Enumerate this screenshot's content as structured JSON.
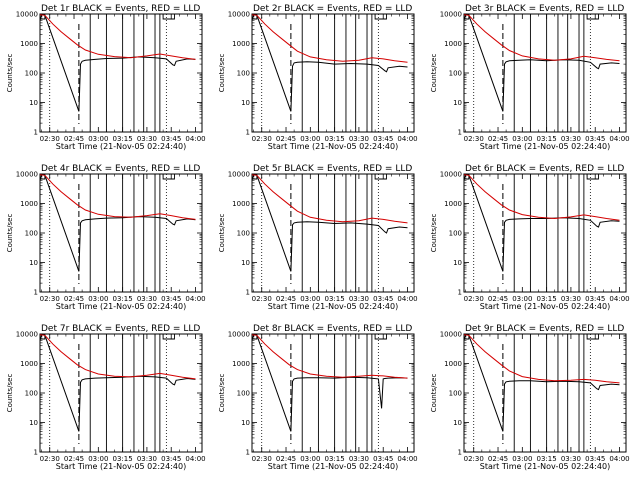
{
  "chart_data": [
    {
      "type": "line",
      "title": "Det 1r BLACK = Events, RED = LLD",
      "xlabel": "Start Time (21-Nov-05 02:24:40)",
      "ylabel": "Counts/sec",
      "xticks": [
        "02:30",
        "02:45",
        "03:00",
        "03:15",
        "03:30",
        "03:45",
        "04:00"
      ],
      "yticks": [
        "1",
        "10",
        "100",
        "1000",
        "10000"
      ],
      "ylim": [
        1,
        10000
      ],
      "yscale": "log",
      "series": [
        {
          "name": "BLACK = Events",
          "color": "#000000",
          "x": [
            "02:24",
            "02:25",
            "02:26",
            "02:27",
            "02:48",
            "02:49",
            "02:50",
            "02:52",
            "02:58",
            "03:05",
            "03:15",
            "03:25",
            "03:35",
            "03:42",
            "03:46",
            "03:47",
            "03:48",
            "03:55",
            "04:00"
          ],
          "y": [
            6000,
            9000,
            9500,
            9000,
            5,
            200,
            250,
            270,
            290,
            310,
            320,
            350,
            330,
            300,
            190,
            180,
            250,
            300,
            290
          ]
        },
        {
          "name": "RED = LLD",
          "color": "#d40000",
          "x": [
            "02:24",
            "02:27",
            "02:32",
            "02:37",
            "02:42",
            "02:47",
            "02:52",
            "03:00",
            "03:10",
            "03:20",
            "03:30",
            "03:38",
            "03:45",
            "03:52",
            "04:00"
          ],
          "y": [
            9500,
            9000,
            4500,
            2500,
            1500,
            900,
            600,
            430,
            360,
            330,
            380,
            440,
            380,
            330,
            290
          ]
        }
      ]
    },
    {
      "type": "line",
      "title": "Det 2r BLACK = Events, RED = LLD",
      "xlabel": "Start Time (21-Nov-05 02:24:40)",
      "ylabel": "Counts/sec",
      "xticks": [
        "02:30",
        "02:45",
        "03:00",
        "03:15",
        "03:30",
        "03:45",
        "04:00"
      ],
      "yticks": [
        "1",
        "10",
        "100",
        "1000",
        "10000"
      ],
      "ylim": [
        1,
        10000
      ],
      "yscale": "log",
      "series": [
        {
          "name": "BLACK = Events",
          "color": "#000000",
          "x": [
            "02:24",
            "02:25",
            "02:26",
            "02:27",
            "02:48",
            "02:49",
            "02:50",
            "02:52",
            "02:58",
            "03:05",
            "03:15",
            "03:25",
            "03:35",
            "03:42",
            "03:46",
            "03:47",
            "03:48",
            "03:55",
            "04:00"
          ],
          "y": [
            6000,
            9000,
            9500,
            9000,
            5,
            170,
            220,
            230,
            240,
            230,
            200,
            210,
            200,
            180,
            120,
            110,
            150,
            170,
            160
          ]
        },
        {
          "name": "RED = LLD",
          "color": "#d40000",
          "x": [
            "02:24",
            "02:27",
            "02:32",
            "02:37",
            "02:42",
            "02:47",
            "02:52",
            "03:00",
            "03:10",
            "03:20",
            "03:30",
            "03:38",
            "03:45",
            "03:52",
            "04:00"
          ],
          "y": [
            9500,
            9000,
            4500,
            2500,
            1500,
            900,
            550,
            350,
            280,
            250,
            270,
            330,
            300,
            260,
            230
          ]
        }
      ]
    },
    {
      "type": "line",
      "title": "Det 3r BLACK = Events, RED = LLD",
      "xlabel": "Start Time (21-Nov-05 02:24:40)",
      "ylabel": "Counts/sec",
      "xticks": [
        "02:30",
        "02:45",
        "03:00",
        "03:15",
        "03:30",
        "03:45",
        "04:00"
      ],
      "yticks": [
        "1",
        "10",
        "100",
        "1000",
        "10000"
      ],
      "ylim": [
        1,
        10000
      ],
      "yscale": "log",
      "series": [
        {
          "name": "BLACK = Events",
          "color": "#000000",
          "x": [
            "02:24",
            "02:25",
            "02:26",
            "02:27",
            "02:48",
            "02:49",
            "02:50",
            "02:52",
            "02:58",
            "03:05",
            "03:15",
            "03:25",
            "03:35",
            "03:42",
            "03:46",
            "03:47",
            "03:48",
            "03:55",
            "04:00"
          ],
          "y": [
            6000,
            9000,
            9500,
            9000,
            5,
            200,
            240,
            260,
            270,
            280,
            260,
            280,
            270,
            230,
            150,
            140,
            200,
            220,
            210
          ]
        },
        {
          "name": "RED = LLD",
          "color": "#d40000",
          "x": [
            "02:24",
            "02:27",
            "02:32",
            "02:37",
            "02:42",
            "02:47",
            "02:52",
            "03:00",
            "03:10",
            "03:20",
            "03:30",
            "03:38",
            "03:45",
            "03:52",
            "04:00"
          ],
          "y": [
            9500,
            9000,
            4500,
            2500,
            1500,
            900,
            580,
            380,
            300,
            270,
            300,
            370,
            330,
            290,
            260
          ]
        }
      ]
    },
    {
      "type": "line",
      "title": "Det 4r BLACK = Events, RED = LLD",
      "xlabel": "Start Time (21-Nov-05 02:24:40)",
      "ylabel": "Counts/sec",
      "xticks": [
        "02:30",
        "02:45",
        "03:00",
        "03:15",
        "03:30",
        "03:45",
        "04:00"
      ],
      "yticks": [
        "1",
        "10",
        "100",
        "1000",
        "10000"
      ],
      "ylim": [
        1,
        10000
      ],
      "yscale": "log",
      "series": [
        {
          "name": "BLACK = Events",
          "color": "#000000",
          "x": [
            "02:24",
            "02:25",
            "02:26",
            "02:27",
            "02:48",
            "02:49",
            "02:50",
            "02:52",
            "02:58",
            "03:05",
            "03:15",
            "03:25",
            "03:35",
            "03:42",
            "03:46",
            "03:47",
            "03:48",
            "03:55",
            "04:00"
          ],
          "y": [
            6000,
            9000,
            9500,
            9000,
            5,
            220,
            260,
            280,
            300,
            320,
            330,
            360,
            340,
            310,
            200,
            190,
            260,
            300,
            280
          ]
        },
        {
          "name": "RED = LLD",
          "color": "#d40000",
          "x": [
            "02:24",
            "02:27",
            "02:32",
            "02:37",
            "02:42",
            "02:47",
            "02:52",
            "03:00",
            "03:10",
            "03:20",
            "03:30",
            "03:38",
            "03:45",
            "03:52",
            "04:00"
          ],
          "y": [
            9500,
            9000,
            4500,
            2500,
            1500,
            900,
            600,
            430,
            360,
            340,
            390,
            450,
            390,
            330,
            290
          ]
        }
      ]
    },
    {
      "type": "line",
      "title": "Det 5r BLACK = Events, RED = LLD",
      "xlabel": "Start Time (21-Nov-05 02:24:40)",
      "ylabel": "Counts/sec",
      "xticks": [
        "02:30",
        "02:45",
        "03:00",
        "03:15",
        "03:30",
        "03:45",
        "04:00"
      ],
      "yticks": [
        "1",
        "10",
        "100",
        "1000",
        "10000"
      ],
      "ylim": [
        1,
        10000
      ],
      "yscale": "log",
      "series": [
        {
          "name": "BLACK = Events",
          "color": "#000000",
          "x": [
            "02:24",
            "02:25",
            "02:26",
            "02:27",
            "02:48",
            "02:49",
            "02:50",
            "02:52",
            "02:58",
            "03:05",
            "03:15",
            "03:25",
            "03:35",
            "03:42",
            "03:46",
            "03:47",
            "03:48",
            "03:55",
            "04:00"
          ],
          "y": [
            6000,
            9000,
            9500,
            9000,
            5,
            190,
            220,
            230,
            240,
            230,
            210,
            220,
            200,
            180,
            110,
            100,
            140,
            160,
            150
          ]
        },
        {
          "name": "RED = LLD",
          "color": "#d40000",
          "x": [
            "02:24",
            "02:27",
            "02:32",
            "02:37",
            "02:42",
            "02:47",
            "02:52",
            "03:00",
            "03:10",
            "03:20",
            "03:30",
            "03:38",
            "03:45",
            "03:52",
            "04:00"
          ],
          "y": [
            9500,
            9000,
            4500,
            2500,
            1500,
            900,
            550,
            340,
            270,
            240,
            260,
            320,
            290,
            250,
            220
          ]
        }
      ]
    },
    {
      "type": "line",
      "title": "Det 6r BLACK = Events, RED = LLD",
      "xlabel": "Start Time (21-Nov-05 02:24:40)",
      "ylabel": "Counts/sec",
      "xticks": [
        "02:30",
        "02:45",
        "03:00",
        "03:15",
        "03:30",
        "03:45",
        "04:00"
      ],
      "yticks": [
        "1",
        "10",
        "100",
        "1000",
        "10000"
      ],
      "ylim": [
        1,
        10000
      ],
      "yscale": "log",
      "series": [
        {
          "name": "BLACK = Events",
          "color": "#000000",
          "x": [
            "02:24",
            "02:25",
            "02:26",
            "02:27",
            "02:48",
            "02:49",
            "02:50",
            "02:52",
            "02:58",
            "03:05",
            "03:15",
            "03:25",
            "03:35",
            "03:42",
            "03:46",
            "03:47",
            "03:48",
            "03:55",
            "04:00"
          ],
          "y": [
            6000,
            9000,
            9500,
            9000,
            5,
            230,
            270,
            290,
            300,
            310,
            310,
            330,
            310,
            270,
            170,
            160,
            230,
            260,
            250
          ]
        },
        {
          "name": "RED = LLD",
          "color": "#d40000",
          "x": [
            "02:24",
            "02:27",
            "02:32",
            "02:37",
            "02:42",
            "02:47",
            "02:52",
            "03:00",
            "03:10",
            "03:20",
            "03:30",
            "03:38",
            "03:45",
            "03:52",
            "04:00"
          ],
          "y": [
            9500,
            9000,
            4500,
            2500,
            1500,
            900,
            600,
            420,
            340,
            310,
            350,
            410,
            360,
            310,
            270
          ]
        }
      ]
    },
    {
      "type": "line",
      "title": "Det 7r BLACK = Events, RED = LLD",
      "xlabel": "Start Time (21-Nov-05 02:24:40)",
      "ylabel": "Counts/sec",
      "xticks": [
        "02:30",
        "02:45",
        "03:00",
        "03:15",
        "03:30",
        "03:45",
        "04:00"
      ],
      "yticks": [
        "1",
        "10",
        "100",
        "1000",
        "10000"
      ],
      "ylim": [
        1,
        10000
      ],
      "yscale": "log",
      "series": [
        {
          "name": "BLACK = Events",
          "color": "#000000",
          "x": [
            "02:24",
            "02:25",
            "02:26",
            "02:27",
            "02:48",
            "02:49",
            "02:50",
            "02:52",
            "02:58",
            "03:05",
            "03:15",
            "03:25",
            "03:35",
            "03:42",
            "03:46",
            "03:47",
            "03:48",
            "03:55",
            "04:00"
          ],
          "y": [
            6000,
            9000,
            9500,
            9000,
            5,
            230,
            280,
            300,
            320,
            330,
            340,
            370,
            350,
            320,
            200,
            190,
            270,
            310,
            290
          ]
        },
        {
          "name": "RED = LLD",
          "color": "#d40000",
          "x": [
            "02:24",
            "02:27",
            "02:32",
            "02:37",
            "02:42",
            "02:47",
            "02:52",
            "03:00",
            "03:10",
            "03:20",
            "03:30",
            "03:38",
            "03:45",
            "03:52",
            "04:00"
          ],
          "y": [
            9500,
            9000,
            4500,
            2500,
            1500,
            900,
            620,
            440,
            370,
            350,
            400,
            460,
            400,
            340,
            300
          ]
        }
      ]
    },
    {
      "type": "line",
      "title": "Det 8r BLACK = Events, RED = LLD",
      "xlabel": "Start Time (21-Nov-05 02:24:40)",
      "ylabel": "Counts/sec",
      "xticks": [
        "02:30",
        "02:45",
        "03:00",
        "03:15",
        "03:30",
        "03:45",
        "04:00"
      ],
      "yticks": [
        "1",
        "10",
        "100",
        "1000",
        "10000"
      ],
      "ylim": [
        1,
        10000
      ],
      "yscale": "log",
      "series": [
        {
          "name": "BLACK = Events",
          "color": "#000000",
          "x": [
            "02:24",
            "02:25",
            "02:26",
            "02:27",
            "02:48",
            "02:49",
            "02:50",
            "02:52",
            "02:58",
            "03:05",
            "03:15",
            "03:25",
            "03:35",
            "03:42",
            "03:44",
            "03:45",
            "03:46",
            "03:48",
            "03:55",
            "04:00"
          ],
          "y": [
            6000,
            9000,
            9500,
            9000,
            5,
            250,
            300,
            320,
            330,
            330,
            320,
            340,
            330,
            300,
            30,
            300,
            310,
            320,
            330,
            320
          ]
        },
        {
          "name": "RED = LLD",
          "color": "#d40000",
          "x": [
            "02:24",
            "02:27",
            "02:32",
            "02:37",
            "02:42",
            "02:47",
            "02:52",
            "03:00",
            "03:10",
            "03:20",
            "03:30",
            "03:38",
            "03:45",
            "03:52",
            "04:00"
          ],
          "y": [
            9500,
            9000,
            4500,
            2500,
            1500,
            900,
            620,
            440,
            370,
            340,
            370,
            400,
            380,
            340,
            320
          ]
        }
      ]
    },
    {
      "type": "line",
      "title": "Det 9r BLACK = Events, RED = LLD",
      "xlabel": "Start Time (21-Nov-05 02:24:40)",
      "ylabel": "Counts/sec",
      "xticks": [
        "02:30",
        "02:45",
        "03:00",
        "03:15",
        "03:30",
        "03:45",
        "04:00"
      ],
      "yticks": [
        "1",
        "10",
        "100",
        "1000",
        "10000"
      ],
      "ylim": [
        1,
        10000
      ],
      "yscale": "log",
      "series": [
        {
          "name": "BLACK = Events",
          "color": "#000000",
          "x": [
            "02:24",
            "02:25",
            "02:26",
            "02:27",
            "02:48",
            "02:49",
            "02:50",
            "02:52",
            "02:58",
            "03:05",
            "03:15",
            "03:25",
            "03:35",
            "03:42",
            "03:46",
            "03:47",
            "03:48",
            "03:55",
            "04:00"
          ],
          "y": [
            6000,
            9000,
            9500,
            9000,
            5,
            200,
            240,
            250,
            260,
            260,
            240,
            250,
            240,
            220,
            140,
            130,
            180,
            200,
            190
          ]
        },
        {
          "name": "RED = LLD",
          "color": "#d40000",
          "x": [
            "02:24",
            "02:27",
            "02:32",
            "02:37",
            "02:42",
            "02:47",
            "02:52",
            "03:00",
            "03:10",
            "03:20",
            "03:30",
            "03:38",
            "03:45",
            "03:52",
            "04:00"
          ],
          "y": [
            9500,
            9000,
            4500,
            2500,
            1500,
            900,
            560,
            360,
            290,
            260,
            270,
            290,
            270,
            240,
            220
          ]
        }
      ]
    }
  ]
}
